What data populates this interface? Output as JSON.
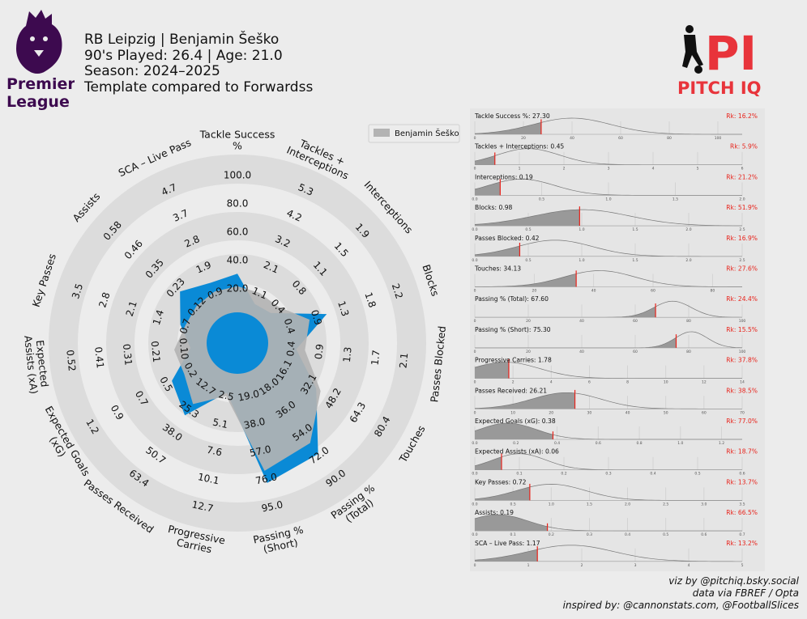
{
  "header": {
    "line1": "RB Leipzig | Benjamin Šeško",
    "line2": "90's Played: 26.4 | Age: 21.0",
    "line3": "Season: 2024–2025",
    "line4": "Template compared to Forwardss"
  },
  "logos": {
    "premier_league_line1": "Premier",
    "premier_league_line2": "League",
    "pitch_iq_text": "PITCH IQ",
    "pitch_iq_mark": "PI"
  },
  "colors": {
    "player": "#0a8ad6",
    "template": "#b3b3b3",
    "ring": "#dcdcdc",
    "dist_fill": "#999999",
    "marker": "#e8231b",
    "pl_purple": "#3d0a4f",
    "piq_red": "#e8343b"
  },
  "footer": {
    "line1": "viz by @pitchiq.bsky.social",
    "line2": "data via FBREF / Opta",
    "line3": "inspired by: @cannonstats.com, @FootballSlices"
  },
  "chart_data": [
    {
      "type": "radar",
      "legend": {
        "label": "Benjamin Šeško",
        "position": "top-right"
      },
      "metrics": [
        {
          "label": [
            "Tackle Success",
            "%"
          ],
          "player_value": 27.3,
          "template_value": 18.5,
          "ticks": [
            "20.0",
            "40.0",
            "60.0",
            "80.0",
            "100.0"
          ],
          "range": [
            0,
            100
          ]
        },
        {
          "label": [
            "Tackles +",
            "Interceptions"
          ],
          "player_value": 0.45,
          "template_value": 0.9,
          "ticks": [
            "1.1",
            "2.1",
            "3.2",
            "4.2",
            "5.3"
          ],
          "range": [
            0,
            5.3
          ]
        },
        {
          "label": [
            "Interceptions"
          ],
          "player_value": 0.19,
          "template_value": 0.32,
          "ticks": [
            "0.4",
            "0.8",
            "1.1",
            "1.5",
            "1.9"
          ],
          "range": [
            0,
            1.9
          ]
        },
        {
          "label": [
            "Blocks"
          ],
          "player_value": 0.98,
          "template_value": 0.7,
          "ticks": [
            "0.4",
            "0.9",
            "1.3",
            "1.8",
            "2.2"
          ],
          "range": [
            0,
            2.2
          ]
        },
        {
          "label": [
            "Passes Blocked"
          ],
          "player_value": 0.42,
          "template_value": 0.55,
          "ticks": [
            "0.4",
            "0.9",
            "1.3",
            "1.7",
            "2.1"
          ],
          "range": [
            0,
            2.1
          ]
        },
        {
          "label": [
            "Touches"
          ],
          "player_value": 34.13,
          "template_value": 37.0,
          "ticks": [
            "16.1",
            "32.1",
            "48.2",
            "64.3",
            "80.4"
          ],
          "range": [
            0,
            80.4
          ]
        },
        {
          "label": [
            "Passing %",
            "(Total)"
          ],
          "player_value": 67.6,
          "template_value": 59.0,
          "ticks": [
            "18.0",
            "36.0",
            "54.0",
            "72.0",
            "90.0"
          ],
          "range": [
            0,
            90
          ]
        },
        {
          "label": [
            "Passing %",
            "(Short)"
          ],
          "player_value": 75.3,
          "template_value": 67.0,
          "ticks": [
            "19.0",
            "38.0",
            "57.0",
            "76.0",
            "95.0"
          ],
          "range": [
            0,
            95
          ]
        },
        {
          "label": [
            "Progressive",
            "Carries"
          ],
          "player_value": 1.78,
          "template_value": 2.1,
          "ticks": [
            "2.5",
            "5.1",
            "7.6",
            "10.1",
            "12.7"
          ],
          "range": [
            0,
            12.7
          ]
        },
        {
          "label": [
            "Passes Received"
          ],
          "player_value": 26.21,
          "template_value": 20.0,
          "ticks": [
            "12.7",
            "25.3",
            "38.0",
            "50.7",
            "63.4"
          ],
          "range": [
            0,
            63.4
          ]
        },
        {
          "label": [
            "Expected Goals",
            "(xG)"
          ],
          "player_value": 0.38,
          "template_value": 0.26,
          "ticks": [
            "0.2",
            "0.5",
            "0.7",
            "0.9",
            "1.2"
          ],
          "range": [
            0,
            1.2
          ]
        },
        {
          "label": [
            "Expected",
            "Assists (xA)"
          ],
          "player_value": 0.06,
          "template_value": 0.12,
          "ticks": [
            "0.10",
            "0.21",
            "0.31",
            "0.41",
            "0.52"
          ],
          "range": [
            0,
            0.52
          ]
        },
        {
          "label": [
            "Key Passes"
          ],
          "player_value": 0.72,
          "template_value": 0.6,
          "ticks": [
            "0.7",
            "1.4",
            "2.1",
            "2.8",
            "3.5"
          ],
          "range": [
            0,
            3.5
          ]
        },
        {
          "label": [
            "Assists"
          ],
          "player_value": 0.19,
          "template_value": 0.1,
          "ticks": [
            "0.12",
            "0.23",
            "0.35",
            "0.46",
            "0.58"
          ],
          "range": [
            0,
            0.58
          ]
        },
        {
          "label": [
            "SCA – Live Pass"
          ],
          "player_value": 1.17,
          "template_value": 0.85,
          "ticks": [
            "0.9",
            "1.9",
            "2.8",
            "3.7",
            "4.7"
          ],
          "range": [
            0,
            4.7
          ]
        }
      ]
    },
    {
      "type": "area",
      "panels": [
        {
          "title": "Tackle Success %: 27.30",
          "rank": "Rk: 16.2%",
          "value": 27.3,
          "xlim": [
            0,
            110
          ],
          "ticks": [
            "0",
            "20",
            "40",
            "60",
            "80",
            "100"
          ],
          "tickvals": [
            0,
            20,
            40,
            60,
            80,
            100
          ],
          "peak": 40,
          "spread": 16
        },
        {
          "title": "Tackles + Interceptions: 0.45",
          "rank": "Rk: 5.9%",
          "value": 0.45,
          "xlim": [
            0,
            6
          ],
          "ticks": [
            "0",
            "1",
            "2",
            "3",
            "4",
            "5",
            "6"
          ],
          "tickvals": [
            0,
            1,
            2,
            3,
            4,
            5,
            6
          ],
          "peak": 1.2,
          "spread": 0.7
        },
        {
          "title": "Interceptions: 0.19",
          "rank": "Rk: 21.2%",
          "value": 0.19,
          "xlim": [
            0,
            2
          ],
          "ticks": [
            "0.0",
            "0.5",
            "1.0",
            "1.5",
            "2.0"
          ],
          "tickvals": [
            0,
            0.5,
            1,
            1.5,
            2
          ],
          "peak": 0.35,
          "spread": 0.25
        },
        {
          "title": "Blocks: 0.98",
          "rank": "Rk: 51.9%",
          "value": 0.98,
          "xlim": [
            0,
            2.5
          ],
          "ticks": [
            "0.0",
            "0.5",
            "1.0",
            "1.5",
            "2.0",
            "2.5"
          ],
          "tickvals": [
            0,
            0.5,
            1,
            1.5,
            2,
            2.5
          ],
          "peak": 1.0,
          "spread": 0.45
        },
        {
          "title": "Passes Blocked: 0.42",
          "rank": "Rk: 16.9%",
          "value": 0.42,
          "xlim": [
            0,
            2.5
          ],
          "ticks": [
            "0.0",
            "0.5",
            "1.0",
            "1.5",
            "2.0",
            "2.5"
          ],
          "tickvals": [
            0,
            0.5,
            1,
            1.5,
            2,
            2.5
          ],
          "peak": 0.75,
          "spread": 0.35
        },
        {
          "title": "Touches: 34.13",
          "rank": "Rk: 27.6%",
          "value": 34.13,
          "xlim": [
            0,
            90
          ],
          "ticks": [
            "0",
            "20",
            "40",
            "60",
            "80"
          ],
          "tickvals": [
            0,
            20,
            40,
            60,
            80
          ],
          "peak": 42,
          "spread": 12
        },
        {
          "title": "Passing % (Total): 67.60",
          "rank": "Rk: 24.4%",
          "value": 67.6,
          "xlim": [
            0,
            100
          ],
          "ticks": [
            "0",
            "20",
            "40",
            "60",
            "80",
            "100"
          ],
          "tickvals": [
            0,
            20,
            40,
            60,
            80,
            100
          ],
          "peak": 74,
          "spread": 7
        },
        {
          "title": "Passing % (Short): 75.30",
          "rank": "Rk: 15.5%",
          "value": 75.3,
          "xlim": [
            0,
            100
          ],
          "ticks": [
            "0",
            "20",
            "40",
            "60",
            "80",
            "100"
          ],
          "tickvals": [
            0,
            20,
            40,
            60,
            80,
            100
          ],
          "peak": 81,
          "spread": 6
        },
        {
          "title": "Progressive Carries: 1.78",
          "rank": "Rk: 37.8%",
          "value": 1.78,
          "xlim": [
            0,
            14
          ],
          "ticks": [
            "0",
            "2",
            "4",
            "6",
            "8",
            "10",
            "12",
            "14"
          ],
          "tickvals": [
            0,
            2,
            4,
            6,
            8,
            10,
            12,
            14
          ],
          "peak": 1.6,
          "spread": 1.8
        },
        {
          "title": "Passes Received: 26.21",
          "rank": "Rk: 38.5%",
          "value": 26.21,
          "xlim": [
            0,
            70
          ],
          "ticks": [
            "0",
            "10",
            "20",
            "30",
            "40",
            "50",
            "60",
            "70"
          ],
          "tickvals": [
            0,
            10,
            20,
            30,
            40,
            50,
            60,
            70
          ],
          "peak": 24,
          "spread": 9
        },
        {
          "title": "Expected Goals (xG): 0.38",
          "rank": "Rk: 77.0%",
          "value": 0.38,
          "xlim": [
            0,
            1.3
          ],
          "ticks": [
            "0.0",
            "0.2",
            "0.4",
            "0.6",
            "0.8",
            "1.0",
            "1.2"
          ],
          "tickvals": [
            0,
            0.2,
            0.4,
            0.6,
            0.8,
            1,
            1.2
          ],
          "peak": 0.16,
          "spread": 0.14
        },
        {
          "title": "Expected Assists (xA): 0.06",
          "rank": "Rk: 18.7%",
          "value": 0.06,
          "xlim": [
            0,
            0.6
          ],
          "ticks": [
            "0.0",
            "0.1",
            "0.2",
            "0.3",
            "0.4",
            "0.5",
            "0.6"
          ],
          "tickvals": [
            0,
            0.1,
            0.2,
            0.3,
            0.4,
            0.5,
            0.6
          ],
          "peak": 0.1,
          "spread": 0.06
        },
        {
          "title": "Key Passes: 0.72",
          "rank": "Rk: 13.7%",
          "value": 0.72,
          "xlim": [
            0,
            3.5
          ],
          "ticks": [
            "0.0",
            "0.5",
            "1.0",
            "1.5",
            "2.0",
            "2.5",
            "3.0",
            "3.5"
          ],
          "tickvals": [
            0,
            0.5,
            1,
            1.5,
            2,
            2.5,
            3,
            3.5
          ],
          "peak": 1.0,
          "spread": 0.45
        },
        {
          "title": "Assists: 0.19",
          "rank": "Rk: 66.5%",
          "value": 0.19,
          "xlim": [
            0,
            0.7
          ],
          "ticks": [
            "0.0",
            "0.1",
            "0.2",
            "0.3",
            "0.4",
            "0.5",
            "0.6",
            "0.7"
          ],
          "tickvals": [
            0,
            0.1,
            0.2,
            0.3,
            0.4,
            0.5,
            0.6,
            0.7
          ],
          "peak": 0.06,
          "spread": 0.08
        },
        {
          "title": "SCA – Live Pass: 1.17",
          "rank": "Rk: 13.2%",
          "value": 1.17,
          "xlim": [
            0,
            5
          ],
          "ticks": [
            "0",
            "1",
            "2",
            "3",
            "4",
            "5"
          ],
          "tickvals": [
            0,
            1,
            2,
            3,
            4,
            5
          ],
          "peak": 1.8,
          "spread": 0.8
        }
      ]
    }
  ]
}
